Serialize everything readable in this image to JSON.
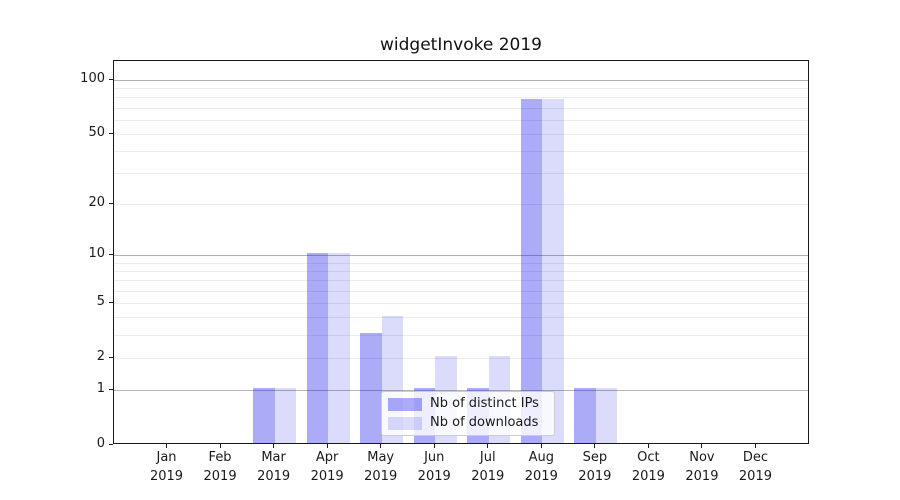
{
  "chart_data": {
    "type": "bar",
    "title": "widgetInvoke 2019",
    "categories": [
      "Jan",
      "Feb",
      "Mar",
      "Apr",
      "May",
      "Jun",
      "Jul",
      "Aug",
      "Sep",
      "Oct",
      "Nov",
      "Dec"
    ],
    "category_year": "2019",
    "series": [
      {
        "name": "Nb of distinct IPs",
        "color": "rgba(0,0,235,0.33)",
        "values": [
          0,
          0,
          1,
          10,
          3,
          1,
          1,
          77,
          1,
          0,
          0,
          0
        ]
      },
      {
        "name": "Nb of downloads",
        "color": "rgba(0,0,235,0.14)",
        "values": [
          0,
          0,
          1,
          10,
          4,
          2,
          2,
          77,
          1,
          0,
          0,
          0
        ]
      }
    ],
    "yscale": "log1p",
    "ylim": [
      0,
      128
    ],
    "yticks": [
      0,
      1,
      2,
      5,
      10,
      20,
      50,
      100
    ],
    "grid": {
      "major": [
        1,
        10,
        100
      ],
      "minor": [
        2,
        3,
        4,
        5,
        6,
        7,
        8,
        9,
        20,
        30,
        40,
        50,
        60,
        70,
        80,
        90
      ]
    },
    "legend_position": "lower-center",
    "colors": {
      "grid_major": "#b5b5b5",
      "grid_minor": "#ececec",
      "axis": "#1a1a1a",
      "background": "#ffffff"
    }
  }
}
